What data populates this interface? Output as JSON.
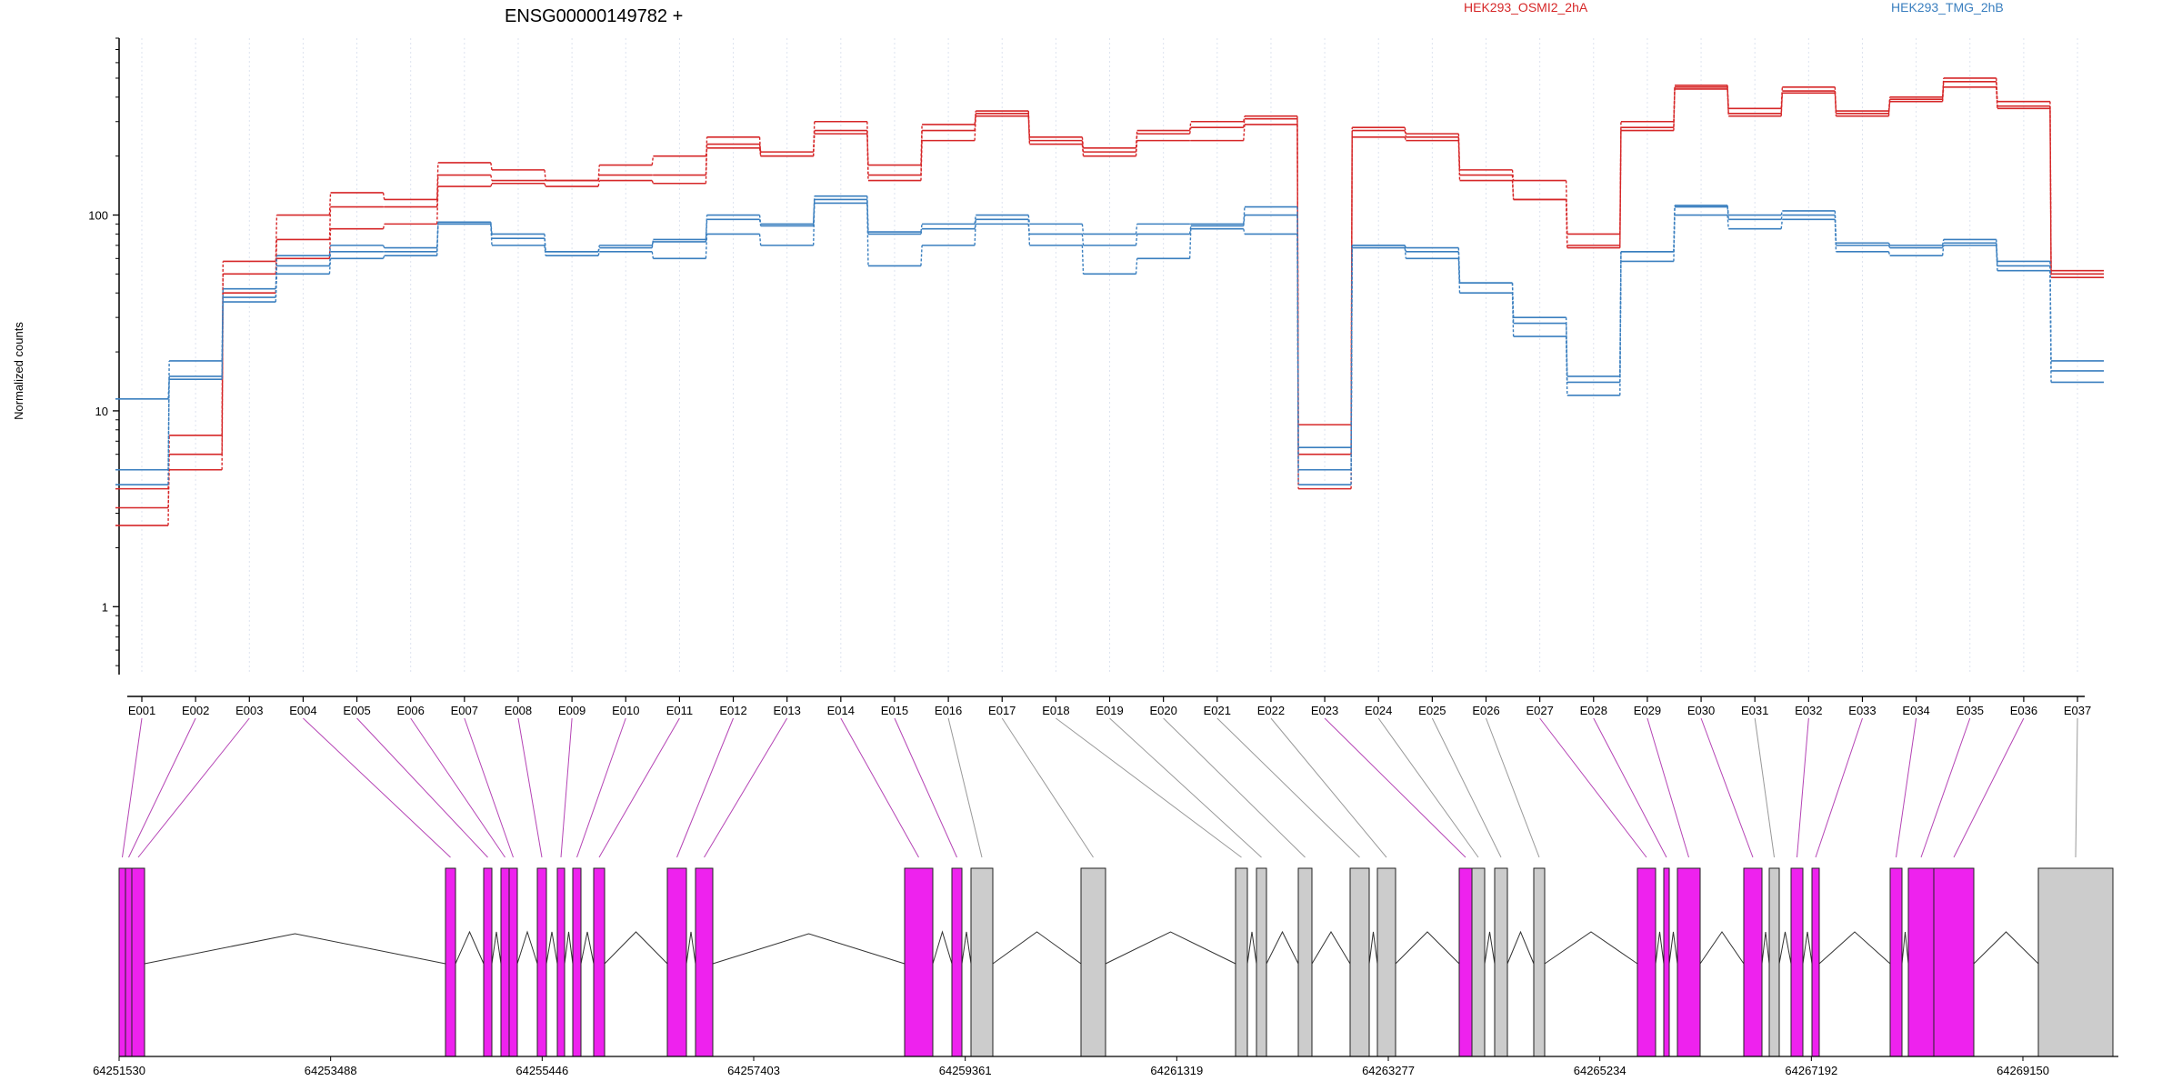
{
  "header": {
    "title": "ENSG00000149782 +",
    "legend": [
      {
        "label": "HEK293_OSMI2_2hA",
        "color": "#d62728"
      },
      {
        "label": "HEK293_TMG_2hB",
        "color": "#3a7fbf"
      }
    ]
  },
  "chart_data": {
    "type": "line",
    "ylabel": "Normalized counts",
    "yscale": "log",
    "ylim": [
      0.45,
      800
    ],
    "yticks": [
      1,
      10,
      100
    ],
    "ytick_labels": [
      "1",
      "10",
      "100"
    ],
    "grid": "vertical dotted at each exon bin",
    "categories": [
      "E001",
      "E002",
      "E003",
      "E004",
      "E005",
      "E006",
      "E007",
      "E008",
      "E009",
      "E010",
      "E011",
      "E012",
      "E013",
      "E014",
      "E015",
      "E016",
      "E017",
      "E018",
      "E019",
      "E020",
      "E021",
      "E022",
      "E023",
      "E024",
      "E025",
      "E026",
      "E027",
      "E028",
      "E029",
      "E030",
      "E031",
      "E032",
      "E033",
      "E034",
      "E035",
      "E036",
      "E037"
    ],
    "series": [
      {
        "name": "HEK293_OSMI2_2hA",
        "color": "#d62728",
        "values": [
          3.2,
          5.0,
          40,
          60,
          85,
          90,
          140,
          145,
          140,
          150,
          145,
          230,
          210,
          270,
          150,
          240,
          320,
          240,
          210,
          260,
          280,
          310,
          4.0,
          250,
          240,
          150,
          120,
          68,
          270,
          440,
          320,
          420,
          330,
          380,
          450,
          350,
          48
        ]
      },
      {
        "name": "HEK293_OSMI2_2hA",
        "color": "#d62728",
        "values": [
          4.0,
          6.0,
          50,
          75,
          110,
          110,
          160,
          150,
          150,
          160,
          160,
          250,
          200,
          300,
          160,
          270,
          340,
          250,
          220,
          270,
          300,
          320,
          6.0,
          270,
          250,
          160,
          120,
          70,
          280,
          450,
          330,
          430,
          340,
          390,
          480,
          360,
          50
        ]
      },
      {
        "name": "HEK293_OSMI2_2hA",
        "color": "#d62728",
        "values": [
          2.6,
          7.5,
          58,
          100,
          130,
          120,
          185,
          170,
          150,
          180,
          200,
          220,
          200,
          260,
          180,
          290,
          330,
          230,
          200,
          240,
          240,
          290,
          8.5,
          280,
          260,
          170,
          150,
          80,
          300,
          460,
          350,
          450,
          320,
          400,
          500,
          380,
          52
        ]
      },
      {
        "name": "HEK293_TMG_2hB",
        "color": "#3a7fbf",
        "values": [
          11.5,
          14.5,
          36,
          50,
          60,
          62,
          90,
          76,
          65,
          70,
          73,
          95,
          88,
          120,
          80,
          85,
          90,
          80,
          70,
          80,
          88,
          100,
          5.0,
          70,
          65,
          45,
          30,
          15,
          65,
          110,
          95,
          100,
          70,
          68,
          72,
          55,
          16
        ]
      },
      {
        "name": "HEK293_TMG_2hB",
        "color": "#3a7fbf",
        "values": [
          5.0,
          15.0,
          38,
          55,
          65,
          65,
          92,
          80,
          65,
          68,
          75,
          100,
          90,
          125,
          82,
          90,
          100,
          90,
          80,
          90,
          90,
          110,
          6.5,
          70,
          68,
          45,
          28,
          14,
          65,
          112,
          100,
          105,
          72,
          70,
          75,
          58,
          18
        ]
      },
      {
        "name": "HEK293_TMG_2hB",
        "color": "#3a7fbf",
        "values": [
          4.2,
          18.0,
          42,
          62,
          70,
          68,
          90,
          70,
          62,
          65,
          60,
          80,
          70,
          115,
          55,
          70,
          95,
          70,
          50,
          60,
          85,
          80,
          4.2,
          68,
          60,
          40,
          24,
          12,
          58,
          100,
          85,
          95,
          65,
          62,
          70,
          52,
          14
        ]
      }
    ],
    "gene_model": {
      "coord_labels": [
        "64251530",
        "64253488",
        "64255446",
        "64257403",
        "64259361",
        "64261319",
        "64263277",
        "64265234",
        "64267192",
        "64269150"
      ]
    }
  }
}
